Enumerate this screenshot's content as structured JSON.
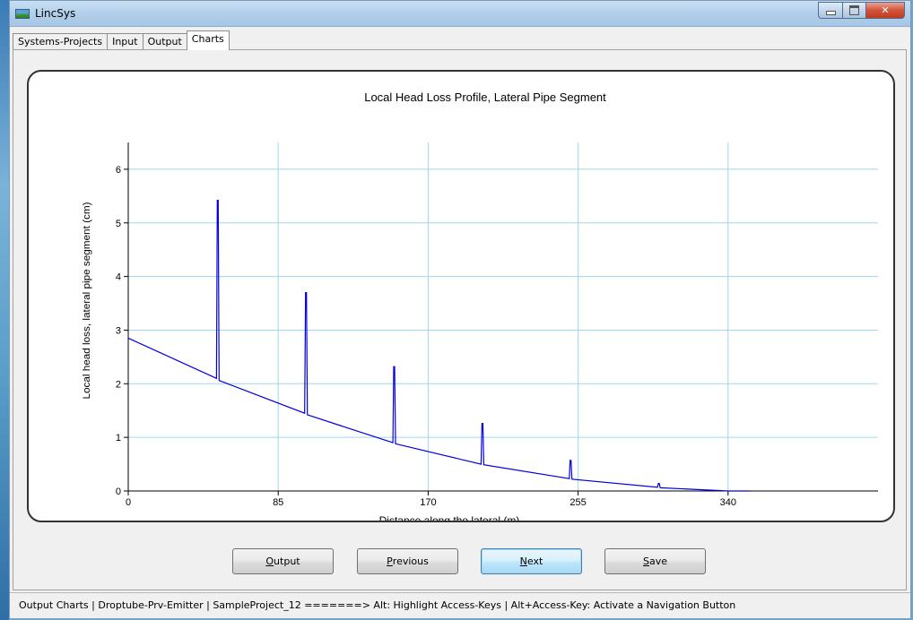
{
  "window": {
    "title": "LincSys"
  },
  "tabs": [
    {
      "label": "Systems-Projects",
      "active": false
    },
    {
      "label": "Input",
      "active": false
    },
    {
      "label": "Output",
      "active": false
    },
    {
      "label": "Charts",
      "active": true
    }
  ],
  "chart_data": {
    "type": "line",
    "title": "Local Head Loss Profile, Lateral Pipe Segment",
    "xlabel": "Distance along the lateral (m)",
    "ylabel": "Local head loss, lateral pipe segment (cm)",
    "xlim": [
      0,
      425
    ],
    "ylim": [
      0,
      6.5
    ],
    "x_ticks": [
      0,
      85,
      170,
      255,
      340
    ],
    "y_ticks": [
      0,
      1,
      2,
      3,
      4,
      5,
      6
    ],
    "grid": true,
    "series": [
      {
        "color": "#0000e0",
        "x": [
          0,
          50,
          50.5,
          51,
          51.5,
          100,
          100.5,
          101,
          101.5,
          150,
          150.5,
          151,
          151.5,
          200,
          200.5,
          201,
          201.5,
          250,
          250.5,
          251,
          251.5,
          300,
          300.5,
          301,
          301.5,
          340,
          352
        ],
        "y": [
          2.85,
          2.1,
          5.42,
          5.42,
          2.06,
          1.45,
          3.7,
          3.7,
          1.42,
          0.9,
          2.32,
          2.32,
          0.88,
          0.5,
          1.26,
          1.26,
          0.49,
          0.23,
          0.57,
          0.57,
          0.22,
          0.07,
          0.14,
          0.14,
          0.06,
          0.0,
          0.0
        ]
      }
    ]
  },
  "buttons": {
    "output": {
      "label": "Output",
      "access_key": "O"
    },
    "previous": {
      "label": "Previous",
      "access_key": "P"
    },
    "next": {
      "label": "Next",
      "access_key": "N"
    },
    "save": {
      "label": "Save",
      "access_key": "S"
    }
  },
  "status": {
    "text": "Output Charts  |  Droptube-Prv-Emitter  |  SampleProject_12   =======>   Alt: Highlight Access-Keys  |  Alt+Access-Key: Activate a Navigation Button"
  },
  "colors": {
    "plot_line": "#0000e0",
    "grid": "#9fd6ee",
    "title_bar": "#b2cfea",
    "close_button": "#c9452a"
  }
}
